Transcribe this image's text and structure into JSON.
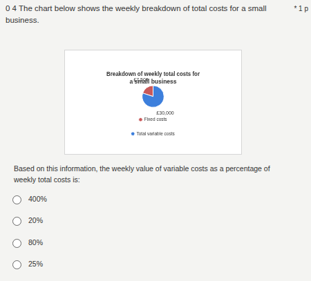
{
  "header": {
    "number": "0 4",
    "text": "The chart below shows the weekly breakdown of total costs for a small business.",
    "marks": "* 1 p"
  },
  "chart_data": {
    "type": "pie",
    "title": [
      "Breakdown of weekly total costs for",
      "a small business"
    ],
    "categories": [
      "Fixed costs",
      "Total variable costs"
    ],
    "values": [
      7500,
      30000
    ],
    "value_labels": [
      "£7,500",
      "£30,000"
    ],
    "colors": [
      "#c9595a",
      "#3d7fdc"
    ],
    "data_labels": true,
    "legend": "bottom"
  },
  "question": "Based on this information, the weekly value of variable costs as a percentage of weekly total costs is:",
  "options": [
    "400%",
    "20%",
    "80%",
    "25%"
  ]
}
